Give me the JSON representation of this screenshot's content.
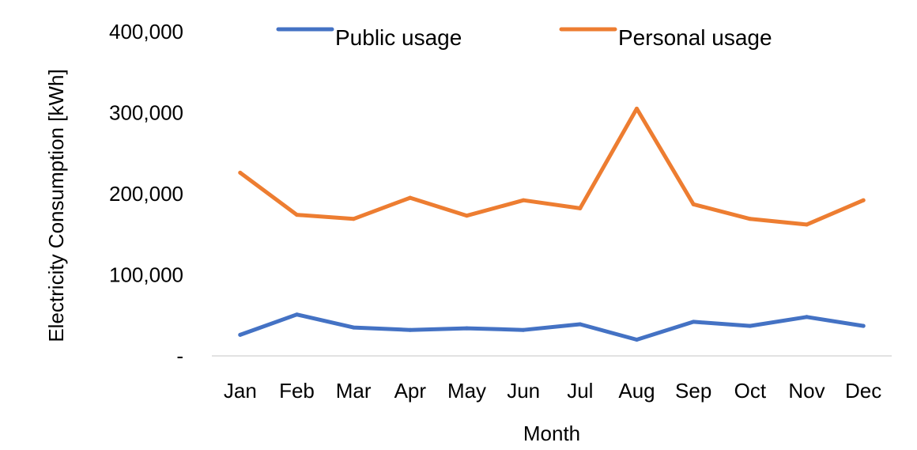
{
  "chart_data": {
    "type": "line",
    "categories": [
      "Jan",
      "Feb",
      "Mar",
      "Apr",
      "May",
      "Jun",
      "Jul",
      "Aug",
      "Sep",
      "Oct",
      "Nov",
      "Dec"
    ],
    "series": [
      {
        "name": "Public usage",
        "color": "#4472C4",
        "values": [
          26000,
          51000,
          35000,
          32000,
          34000,
          32000,
          39000,
          20000,
          42000,
          37000,
          48000,
          37000
        ]
      },
      {
        "name": "Personal usage",
        "color": "#ED7D31",
        "values": [
          226000,
          174000,
          169000,
          195000,
          173000,
          192000,
          182000,
          305000,
          187000,
          169000,
          162000,
          192000
        ]
      }
    ],
    "xlabel": "Month",
    "ylabel": "Electricity Consumption [kWh]",
    "ylim": [
      0,
      400000
    ],
    "yticks": [
      0,
      100000,
      200000,
      300000,
      400000
    ],
    "ytick_labels": [
      "-",
      "100,000",
      "200,000",
      "300,000",
      "400,000"
    ],
    "grid": false,
    "legend_position": "top"
  }
}
